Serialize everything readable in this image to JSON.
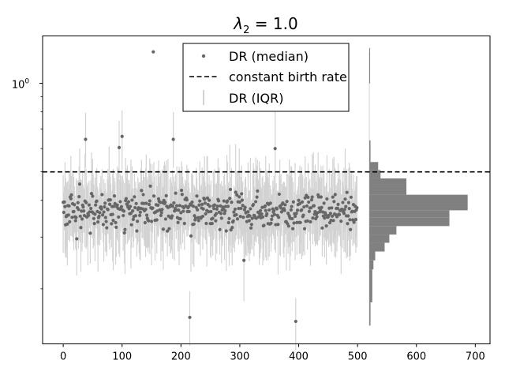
{
  "chart_data": {
    "type": "scatter",
    "title": "λ₂ = 1.0",
    "title_symbol": "λ",
    "title_subscript": "2",
    "title_rest": " = 1.0",
    "xlabel": "",
    "ylabel": "",
    "xlim": [
      -35,
      725
    ],
    "ylim": [
      0.13,
      1.45
    ],
    "y_scale": "log",
    "x_ticks": [
      0,
      100,
      200,
      300,
      400,
      500,
      600,
      700
    ],
    "x_tick_labels": [
      "0",
      "100",
      "200",
      "300",
      "400",
      "500",
      "600",
      "700"
    ],
    "y_ticks": [
      1.0
    ],
    "y_tick_label_base": "10",
    "y_tick_label_exp": "0",
    "grid": false,
    "legend_position": "top-center",
    "legend": [
      {
        "key": "median",
        "label": "DR (median)",
        "marker": "dot",
        "color": "#666666"
      },
      {
        "key": "constant",
        "label": "constant birth rate",
        "marker": "dashed-line",
        "color": "#000000"
      },
      {
        "key": "iqr",
        "label": "DR (IQR)",
        "marker": "vertical-line",
        "color": "#d3d3d3"
      }
    ],
    "constant_birth_rate": 0.5,
    "series_count": 500,
    "series_seed": 7,
    "median_center": 0.37,
    "iqr_half_width": 0.12,
    "noted_points": [
      {
        "x": 153,
        "y": 1.28
      },
      {
        "x": 38,
        "y": 0.645
      },
      {
        "x": 100,
        "y": 0.66
      },
      {
        "x": 95,
        "y": 0.605
      },
      {
        "x": 187,
        "y": 0.645
      },
      {
        "x": 215,
        "y": 0.16
      },
      {
        "x": 395,
        "y": 0.155
      },
      {
        "x": 307,
        "y": 0.25
      },
      {
        "x": 360,
        "y": 0.6
      }
    ],
    "histogram": {
      "color": "#808080",
      "x0": 520,
      "bins": [
        {
          "lo": 1.0,
          "hi": 1.32,
          "count": 1
        },
        {
          "lo": 0.54,
          "hi": 0.64,
          "count": 2
        },
        {
          "lo": 0.507,
          "hi": 0.54,
          "count": 15
        },
        {
          "lo": 0.475,
          "hi": 0.507,
          "count": 19
        },
        {
          "lo": 0.445,
          "hi": 0.475,
          "count": 63
        },
        {
          "lo": 0.418,
          "hi": 0.445,
          "count": 63
        },
        {
          "lo": 0.392,
          "hi": 0.418,
          "count": 167
        },
        {
          "lo": 0.37,
          "hi": 0.392,
          "count": 167
        },
        {
          "lo": 0.349,
          "hi": 0.37,
          "count": 136
        },
        {
          "lo": 0.327,
          "hi": 0.349,
          "count": 136
        },
        {
          "lo": 0.306,
          "hi": 0.327,
          "count": 46
        },
        {
          "lo": 0.287,
          "hi": 0.306,
          "count": 34
        },
        {
          "lo": 0.268,
          "hi": 0.287,
          "count": 26
        },
        {
          "lo": 0.25,
          "hi": 0.268,
          "count": 10
        },
        {
          "lo": 0.233,
          "hi": 0.25,
          "count": 7
        },
        {
          "lo": 0.18,
          "hi": 0.233,
          "count": 5
        },
        {
          "lo": 0.15,
          "hi": 0.18,
          "count": 2
        }
      ]
    }
  }
}
